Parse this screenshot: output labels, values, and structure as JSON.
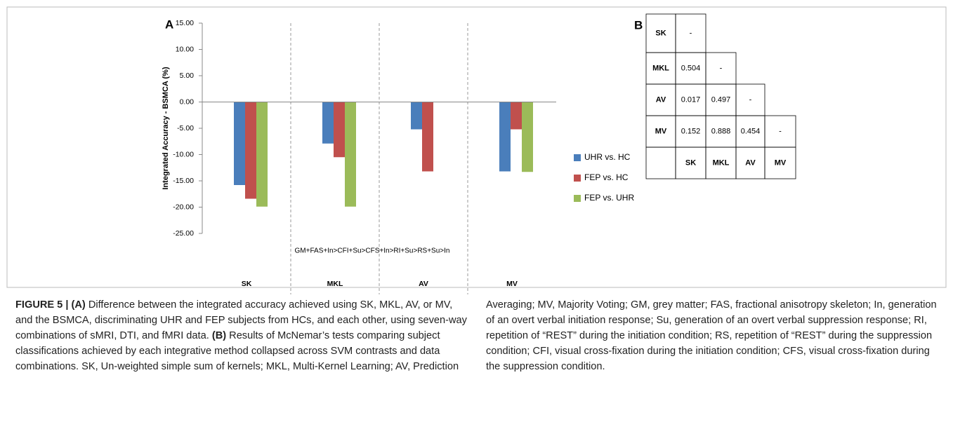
{
  "chart_data": {
    "type": "bar",
    "panel_label": "A",
    "ylabel": "Integrated Accuracy - BSMCA (%)",
    "categories": [
      "SK",
      "MKL",
      "AV",
      "MV"
    ],
    "annotation": "GM+FAS+In>CFI+Su>CFS+In>RI+Su>RS+Su>In",
    "series": [
      {
        "name": "UHR vs. HC",
        "color": "#4a7ebb",
        "values": [
          -15.8,
          -7.9,
          -5.2,
          -13.2
        ]
      },
      {
        "name": "FEP vs. HC",
        "color": "#c0504d",
        "values": [
          -18.4,
          -10.5,
          -13.2,
          -5.2
        ]
      },
      {
        "name": "FEP vs. UHR",
        "color": "#9bbb59",
        "values": [
          -19.9,
          -19.9,
          null,
          -13.3
        ]
      }
    ],
    "ylim": [
      -25,
      15
    ],
    "yticks": [
      {
        "value": 15,
        "label": "15.00"
      },
      {
        "value": 10,
        "label": "10.00"
      },
      {
        "value": 5,
        "label": "5.00"
      },
      {
        "value": 0,
        "label": "0.00"
      },
      {
        "value": -5,
        "label": "-5.00"
      },
      {
        "value": -10,
        "label": "-10.00"
      },
      {
        "value": -15,
        "label": "-15.00"
      },
      {
        "value": -20,
        "label": "-20.00"
      },
      {
        "value": -25,
        "label": "-25.00"
      }
    ],
    "legend": "right"
  },
  "table": {
    "panel_label": "B",
    "rows": [
      [
        "SK",
        "-"
      ],
      [
        "MKL",
        "0.504",
        "-"
      ],
      [
        "AV",
        "0.017",
        "0.497",
        "-"
      ],
      [
        "MV",
        "0.152",
        "0.888",
        "0.454",
        "-"
      ]
    ],
    "columns": [
      "SK",
      "MKL",
      "AV",
      "MV"
    ]
  },
  "caption": {
    "label_a": "FIGURE 5 | (A)",
    "text_a": " Difference between the integrated accuracy achieved using SK, MKL, AV, or MV, and the BSMCA, discriminating UHR and FEP subjects from HCs, and each other, using seven-way combinations of sMRI, DTI, and fMRI data. ",
    "label_b": "(B)",
    "text_b": " Results of McNemar’s tests comparing subject classifications achieved by each integrative method collapsed across SVM contrasts and data combinations. SK, Un-weighted simple sum of kernels; MKL, Multi-Kernel Learning; AV, Prediction Averaging; MV, Majority Voting; GM, grey matter; FAS, fractional anisotropy skeleton; In, generation of an overt verbal initiation response; Su, generation of an overt verbal suppression response; RI, repetition of “REST” during the initiation condition; RS, repetition of “REST” during the suppression condition; CFI, visual cross-fixation during the initiation condition; CFS, visual cross-fixation during the suppression condition."
  }
}
